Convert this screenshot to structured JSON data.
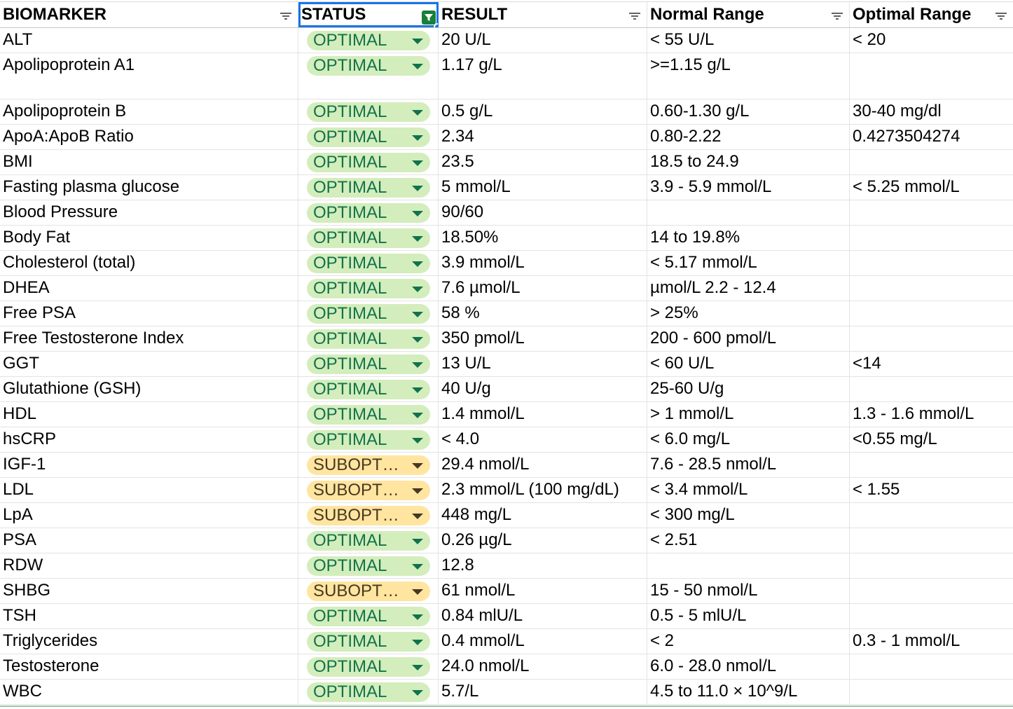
{
  "headers": [
    "BIOMARKER",
    "STATUS",
    "RESULT",
    "Normal Range",
    "Optimal Range"
  ],
  "colors": {
    "optimal_bg": "#d4edbc",
    "optimal_fg": "#11734b",
    "suboptimal_bg": "#ffe5a0",
    "suboptimal_fg": "#473821",
    "selection": "#1a73e8",
    "filter_active": "#188038"
  },
  "rows": [
    {
      "biomarker": "ALT",
      "status": "OPTIMAL",
      "kind": "opt",
      "result": "20 U/L",
      "normal": "< 55 U/L",
      "optimal": "< 20"
    },
    {
      "biomarker": "Apolipoprotein A1",
      "status": "OPTIMAL",
      "kind": "opt",
      "result": "1.17 g/L",
      "normal": ">=1.15 g/L",
      "optimal": "",
      "tall": true
    },
    {
      "biomarker": "Apolipoprotein B",
      "status": "OPTIMAL",
      "kind": "opt",
      "result": "0.5 g/L",
      "normal": "0.60-1.30 g/L",
      "optimal": "30-40 mg/dl"
    },
    {
      "biomarker": "ApoA:ApoB Ratio",
      "status": "OPTIMAL",
      "kind": "opt",
      "result": "2.34",
      "normal": "0.80-2.22",
      "optimal": "0.4273504274"
    },
    {
      "biomarker": "BMI",
      "status": "OPTIMAL",
      "kind": "opt",
      "result": "23.5",
      "normal": "18.5 to 24.9",
      "optimal": ""
    },
    {
      "biomarker": "Fasting plasma glucose",
      "status": "OPTIMAL",
      "kind": "opt",
      "result": "5 mmol/L",
      "normal": "3.9 - 5.9 mmol/L",
      "optimal": "< 5.25 mmol/L"
    },
    {
      "biomarker": "Blood Pressure",
      "status": "OPTIMAL",
      "kind": "opt",
      "result": "90/60",
      "normal": "",
      "optimal": ""
    },
    {
      "biomarker": "Body Fat",
      "status": "OPTIMAL",
      "kind": "opt",
      "result": "18.50%",
      "normal": "14 to 19.8%",
      "optimal": ""
    },
    {
      "biomarker": "Cholesterol (total)",
      "status": "OPTIMAL",
      "kind": "opt",
      "result": "3.9 mmol/L",
      "normal": "< 5.17 mmol/L",
      "optimal": ""
    },
    {
      "biomarker": "DHEA",
      "status": "OPTIMAL",
      "kind": "opt",
      "result": "7.6 µmol/L",
      "normal": "µmol/L 2.2 - 12.4",
      "optimal": ""
    },
    {
      "biomarker": "Free PSA",
      "status": "OPTIMAL",
      "kind": "opt",
      "result": "58 %",
      "normal": "> 25%",
      "optimal": ""
    },
    {
      "biomarker": "Free Testosterone Index",
      "status": "OPTIMAL",
      "kind": "opt",
      "result": "350 pmol/L",
      "normal": "200 - 600 pmol/L",
      "optimal": ""
    },
    {
      "biomarker": "GGT",
      "status": "OPTIMAL",
      "kind": "opt",
      "result": "13 U/L",
      "normal": "< 60 U/L",
      "optimal": "<14"
    },
    {
      "biomarker": "Glutathione (GSH)",
      "status": "OPTIMAL",
      "kind": "opt",
      "result": "40 U/g",
      "normal": "25-60 U/g",
      "optimal": ""
    },
    {
      "biomarker": "HDL",
      "status": "OPTIMAL",
      "kind": "opt",
      "result": "1.4 mmol/L",
      "normal": "> 1 mmol/L",
      "optimal": "1.3 - 1.6 mmol/L"
    },
    {
      "biomarker": "hsCRP",
      "status": "OPTIMAL",
      "kind": "opt",
      "result": "< 4.0",
      "normal": "< 6.0 mg/L",
      "optimal": " <0.55 mg/L"
    },
    {
      "biomarker": "IGF-1",
      "status": "SUBOPT…",
      "kind": "sub",
      "result": "29.4 nmol/L",
      "normal": "7.6 - 28.5 nmol/L",
      "optimal": ""
    },
    {
      "biomarker": "LDL",
      "status": "SUBOPT…",
      "kind": "sub",
      "result": "2.3 mmol/L (100 mg/dL)",
      "normal": "< 3.4 mmol/L",
      "optimal": "< 1.55"
    },
    {
      "biomarker": "LpA",
      "status": "SUBOPT…",
      "kind": "sub",
      "result": "448 mg/L",
      "normal": "< 300 mg/L",
      "optimal": ""
    },
    {
      "biomarker": "PSA",
      "status": "OPTIMAL",
      "kind": "opt",
      "result": "0.26 µg/L",
      "normal": "< 2.51",
      "optimal": ""
    },
    {
      "biomarker": "RDW",
      "status": "OPTIMAL",
      "kind": "opt",
      "result": "12.8",
      "normal": "",
      "optimal": ""
    },
    {
      "biomarker": "SHBG",
      "status": "SUBOPT…",
      "kind": "sub",
      "result": "61 nmol/L",
      "normal": "15 - 50 nmol/L",
      "optimal": ""
    },
    {
      "biomarker": "TSH",
      "status": "OPTIMAL",
      "kind": "opt",
      "result": "0.84 mlU/L",
      "normal": "0.5 - 5 mlU/L",
      "optimal": ""
    },
    {
      "biomarker": "Triglycerides",
      "status": "OPTIMAL",
      "kind": "opt",
      "result": "0.4 mmol/L",
      "normal": "< 2",
      "optimal": "0.3 - 1 mmol/L"
    },
    {
      "biomarker": "Testosterone",
      "status": "OPTIMAL",
      "kind": "opt",
      "result": "24.0 nmol/L",
      "normal": "6.0 - 28.0 nmol/L",
      "optimal": ""
    },
    {
      "biomarker": "WBC",
      "status": "OPTIMAL",
      "kind": "opt",
      "result": "5.7/L",
      "normal": "4.5 to 11.0 × 10^9/L",
      "optimal": ""
    }
  ]
}
